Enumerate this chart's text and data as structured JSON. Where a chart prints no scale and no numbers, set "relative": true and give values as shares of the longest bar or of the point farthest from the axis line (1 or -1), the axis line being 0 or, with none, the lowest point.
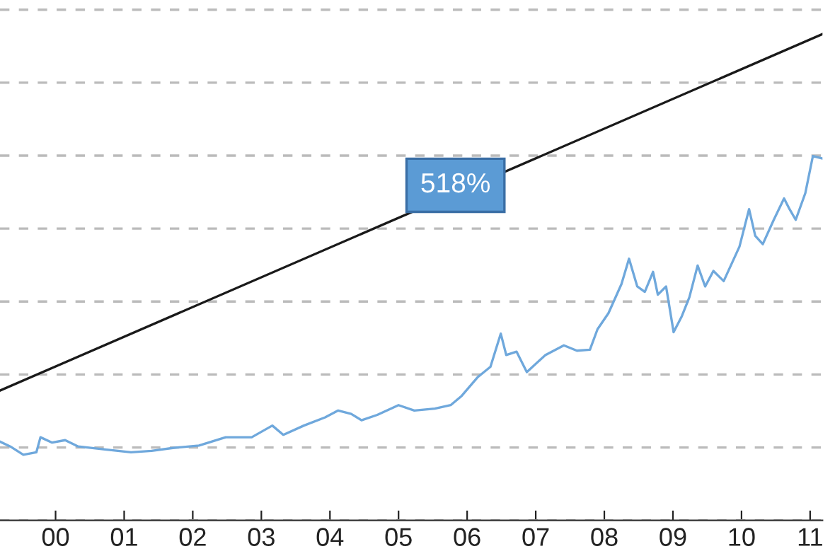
{
  "chart_data": {
    "type": "line",
    "relative": true,
    "grid": "y",
    "legend": false,
    "tick_labels": "x",
    "line_style": "solid",
    "marker": "none",
    "xlim": [
      1999.19,
      2011.18
    ],
    "xticks": [
      {
        "value": 2000,
        "label": "00"
      },
      {
        "value": 2001,
        "label": "01"
      },
      {
        "value": 2002,
        "label": "02"
      },
      {
        "value": 2003,
        "label": "03"
      },
      {
        "value": 2004,
        "label": "04"
      },
      {
        "value": 2005,
        "label": "05"
      },
      {
        "value": 2006,
        "label": "06"
      },
      {
        "value": 2007,
        "label": "07"
      },
      {
        "value": 2008,
        "label": "08"
      },
      {
        "value": 2009,
        "label": "09"
      },
      {
        "value": 2010,
        "label": "10"
      },
      {
        "value": 2011,
        "label": "11"
      }
    ],
    "annotations": [
      {
        "text": "518%",
        "x": 2005.83,
        "y": 0.689
      }
    ],
    "series": [
      {
        "color": "#6fa8dc",
        "x": [
          1999.19,
          1999.34,
          1999.53,
          1999.72,
          1999.78,
          1999.95,
          2000.14,
          2000.33,
          2000.72,
          2001.1,
          2001.4,
          2001.71,
          2002.09,
          2002.48,
          2002.86,
          2003.16,
          2003.32,
          2003.62,
          2003.93,
          2004.12,
          2004.31,
          2004.46,
          2004.69,
          2005.0,
          2005.23,
          2005.53,
          2005.76,
          2005.92,
          2006.15,
          2006.34,
          2006.49,
          2006.57,
          2006.72,
          2006.87,
          2007.14,
          2007.41,
          2007.6,
          2007.79,
          2007.9,
          2008.06,
          2008.25,
          2008.36,
          2008.48,
          2008.59,
          2008.71,
          2008.78,
          2008.9,
          2009.01,
          2009.13,
          2009.24,
          2009.36,
          2009.47,
          2009.59,
          2009.74,
          2009.97,
          2010.11,
          2010.2,
          2010.31,
          2010.47,
          2010.62,
          2010.7,
          2010.79,
          2010.93,
          2011.04,
          2011.18
        ],
        "values": [
          0.162,
          0.152,
          0.135,
          0.14,
          0.171,
          0.16,
          0.165,
          0.152,
          0.146,
          0.14,
          0.143,
          0.149,
          0.154,
          0.171,
          0.171,
          0.195,
          0.176,
          0.195,
          0.212,
          0.226,
          0.219,
          0.206,
          0.217,
          0.237,
          0.226,
          0.23,
          0.237,
          0.256,
          0.294,
          0.316,
          0.384,
          0.34,
          0.347,
          0.305,
          0.34,
          0.36,
          0.349,
          0.351,
          0.393,
          0.426,
          0.486,
          0.538,
          0.481,
          0.47,
          0.511,
          0.464,
          0.481,
          0.387,
          0.42,
          0.459,
          0.524,
          0.481,
          0.513,
          0.492,
          0.563,
          0.64,
          0.585,
          0.568,
          0.618,
          0.662,
          0.64,
          0.618,
          0.673,
          0.749,
          0.744
        ]
      },
      {
        "color": "#1a1a1a",
        "x": [
          1999.19,
          2011.18
        ],
        "values": [
          0.267,
          1.0
        ]
      }
    ]
  }
}
